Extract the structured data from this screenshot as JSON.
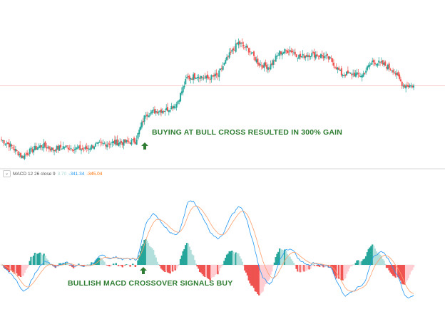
{
  "chart_data": {
    "type": "candlestick",
    "price_closes": [
      17,
      12,
      5,
      10,
      13,
      10,
      12,
      11,
      10,
      13,
      14,
      15,
      15,
      16,
      35,
      37,
      38,
      42,
      60,
      62,
      60,
      62,
      75,
      85,
      80,
      70,
      68,
      78,
      80,
      75,
      77,
      76,
      73,
      63,
      63,
      62,
      72,
      70,
      66,
      55,
      55
    ],
    "current_price_line": true,
    "indicator": {
      "name": "MACD",
      "params": "12 26 close 9",
      "values": {
        "histogram": "3.70",
        "macd": "-341.34",
        "signal": "-345.04"
      }
    },
    "annotations": [
      {
        "text": "BUYING AT BULL CROSS RESULTED IN 300% GAIN",
        "icon": "arrow-up-icon"
      },
      {
        "text": "BULLISH MACD CROSSOVER SIGNALS BUY",
        "icon": "arrow-up-icon"
      }
    ]
  },
  "colors": {
    "up": "#26a69a",
    "down": "#ef5350",
    "hist_up_strong": "#26a69a",
    "hist_up_weak": "#b2dfdb",
    "hist_down_strong": "#ef5350",
    "hist_down_weak": "#ffcdd2",
    "macd_line": "#2196f3",
    "signal_line": "#ff9e6b",
    "annotation": "#2e7d32",
    "price_line": "#f4b6b6"
  },
  "legend": {
    "title": "MACD 12 26 close 9",
    "hist": "3.70",
    "macd": "-341.34",
    "signal": "-345.04"
  }
}
